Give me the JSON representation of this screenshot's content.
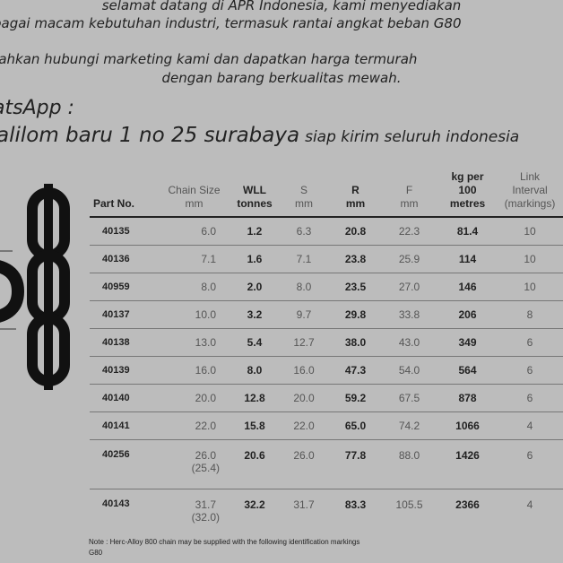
{
  "promo": {
    "line1": "selamat datang di APR Indonesia, kami menyediakan",
    "line2": "bagai macam kebutuhan industri, termasuk rantai angkat beban G80",
    "line3": "ilahkan hubungi marketing kami dan dapatkan harga termurah",
    "line4": "dengan barang berkualitas mewah.",
    "line5": "atsApp :",
    "line6": "alilom baru 1 no 25 surabaya",
    "line6_small": "siap kirim seluruh indonesia"
  },
  "table": {
    "headers": [
      {
        "l1": "",
        "l2": "Part No."
      },
      {
        "l1": "Chain Size",
        "l2": "mm"
      },
      {
        "l1": "WLL",
        "l2": "tonnes"
      },
      {
        "l1": "S",
        "l2": "mm"
      },
      {
        "l1": "R",
        "l2": "mm"
      },
      {
        "l1": "F",
        "l2": "mm"
      },
      {
        "l1": "kg per 100",
        "l2": "metres"
      },
      {
        "l1": "Link Interval",
        "l2": "(markings)"
      }
    ],
    "rows": [
      {
        "part": "40135",
        "size": "6.0",
        "size2": "",
        "wll": "1.2",
        "s": "6.3",
        "r": "20.8",
        "f": "22.3",
        "kg": "81.4",
        "link": "10"
      },
      {
        "part": "40136",
        "size": "7.1",
        "size2": "",
        "wll": "1.6",
        "s": "7.1",
        "r": "23.8",
        "f": "25.9",
        "kg": "114",
        "link": "10"
      },
      {
        "part": "40959",
        "size": "8.0",
        "size2": "",
        "wll": "2.0",
        "s": "8.0",
        "r": "23.5",
        "f": "27.0",
        "kg": "146",
        "link": "10"
      },
      {
        "part": "40137",
        "size": "10.0",
        "size2": "",
        "wll": "3.2",
        "s": "9.7",
        "r": "29.8",
        "f": "33.8",
        "kg": "206",
        "link": "8"
      },
      {
        "part": "40138",
        "size": "13.0",
        "size2": "",
        "wll": "5.4",
        "s": "12.7",
        "r": "38.0",
        "f": "43.0",
        "kg": "349",
        "link": "6"
      },
      {
        "part": "40139",
        "size": "16.0",
        "size2": "",
        "wll": "8.0",
        "s": "16.0",
        "r": "47.3",
        "f": "54.0",
        "kg": "564",
        "link": "6"
      },
      {
        "part": "40140",
        "size": "20.0",
        "size2": "",
        "wll": "12.8",
        "s": "20.0",
        "r": "59.2",
        "f": "67.5",
        "kg": "878",
        "link": "6"
      },
      {
        "part": "40141",
        "size": "22.0",
        "size2": "",
        "wll": "15.8",
        "s": "22.0",
        "r": "65.0",
        "f": "74.2",
        "kg": "1066",
        "link": "4"
      },
      {
        "part": "40256",
        "size": "26.0",
        "size2": "(25.4)",
        "wll": "20.6",
        "s": "26.0",
        "r": "77.8",
        "f": "88.0",
        "kg": "1426",
        "link": "6"
      },
      {
        "part": "40143",
        "size": "31.7",
        "size2": "(32.0)",
        "wll": "32.2",
        "s": "31.7",
        "r": "83.3",
        "f": "105.5",
        "kg": "2366",
        "link": "4"
      }
    ]
  },
  "note": {
    "line1": "Note : Herc-Alloy 800 chain may be supplied with the following identification markings",
    "line2": "G80"
  }
}
